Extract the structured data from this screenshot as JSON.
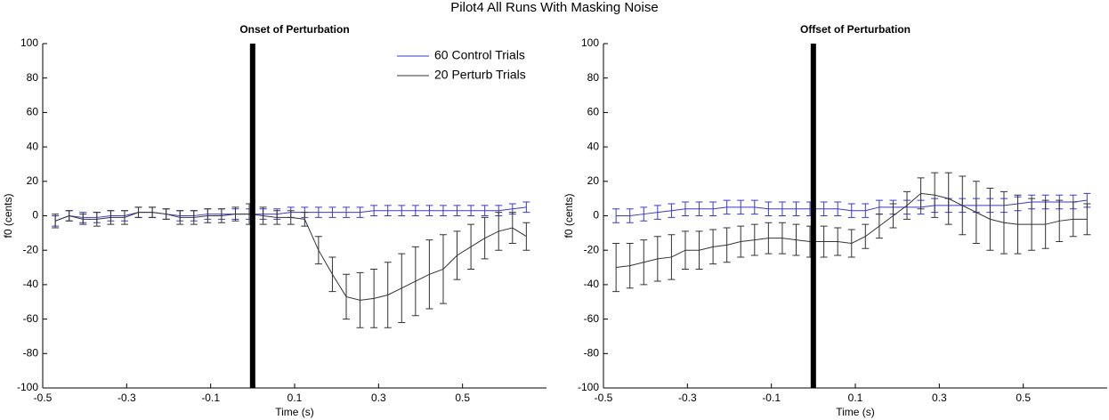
{
  "title": "Pilot4 All Runs With Masking Noise",
  "chart_data": [
    {
      "type": "line",
      "title": "Onset of Perturbation",
      "x_label": "Time (s)",
      "y_label": "f0 (cents)",
      "xlim": [
        -0.5,
        0.7
      ],
      "ylim": [
        -100,
        100
      ],
      "xticks": [
        -0.5,
        -0.3,
        -0.1,
        0.1,
        0.3,
        0.5
      ],
      "yticks": [
        -100,
        -80,
        -60,
        -40,
        -20,
        0,
        20,
        40,
        60,
        80,
        100
      ],
      "vline": 0,
      "legend": "upper right",
      "x": [
        -0.47,
        -0.437,
        -0.404,
        -0.371,
        -0.338,
        -0.305,
        -0.272,
        -0.239,
        -0.206,
        -0.173,
        -0.14,
        -0.107,
        -0.074,
        -0.041,
        -0.008,
        0.025,
        0.058,
        0.091,
        0.124,
        0.157,
        0.19,
        0.223,
        0.256,
        0.289,
        0.322,
        0.355,
        0.388,
        0.421,
        0.454,
        0.487,
        0.52,
        0.553,
        0.586,
        0.619,
        0.652
      ],
      "series": [
        {
          "name": "60 Control Trials",
          "color": "#3a3acc",
          "values": [
            -3,
            0,
            -1,
            -1,
            0,
            0,
            2,
            2,
            1,
            0,
            0,
            1,
            1,
            1,
            1,
            1,
            1,
            2,
            2,
            2,
            2,
            2,
            2,
            3,
            3,
            3,
            3,
            3,
            3,
            3,
            3,
            3,
            3,
            4,
            5
          ],
          "errors": [
            3,
            3,
            3,
            3,
            3,
            3,
            3,
            3,
            3,
            3,
            3,
            3,
            3,
            3,
            3,
            3,
            3,
            3,
            3,
            3,
            3,
            3,
            3,
            3,
            3,
            3,
            3,
            3,
            3,
            3,
            3,
            3,
            3,
            3,
            3
          ]
        },
        {
          "name": "20 Perturb Trials",
          "color": "#333333",
          "values": [
            -3,
            0,
            -2,
            -2,
            -1,
            -1,
            2,
            2,
            1,
            -1,
            -1,
            0,
            0,
            1,
            1,
            0,
            -1,
            -1,
            -2,
            -20,
            -34,
            -47,
            -49,
            -48,
            -46,
            -42,
            -38,
            -34,
            -31,
            -23,
            -18,
            -13,
            -9,
            -7,
            -12
          ],
          "errors": [
            4,
            3,
            3,
            4,
            4,
            4,
            3,
            3,
            3,
            4,
            4,
            4,
            4,
            4,
            6,
            5,
            4,
            4,
            4,
            8,
            10,
            13,
            16,
            17,
            19,
            20,
            20,
            20,
            20,
            14,
            13,
            12,
            11,
            9,
            8
          ]
        }
      ]
    },
    {
      "type": "line",
      "title": "Offset of Perturbation",
      "x_label": "Time (s)",
      "y_label": "f0 (cents)",
      "xlim": [
        -0.5,
        0.7
      ],
      "ylim": [
        -100,
        100
      ],
      "xticks": [
        -0.5,
        -0.3,
        -0.1,
        0.1,
        0.3,
        0.5
      ],
      "yticks": [
        -100,
        -80,
        -60,
        -40,
        -20,
        0,
        20,
        40,
        60,
        80,
        100
      ],
      "vline": 0,
      "x": [
        -0.47,
        -0.437,
        -0.404,
        -0.371,
        -0.338,
        -0.305,
        -0.272,
        -0.239,
        -0.206,
        -0.173,
        -0.14,
        -0.107,
        -0.074,
        -0.041,
        -0.008,
        0.025,
        0.058,
        0.091,
        0.124,
        0.157,
        0.19,
        0.223,
        0.256,
        0.289,
        0.322,
        0.355,
        0.388,
        0.421,
        0.454,
        0.487,
        0.52,
        0.553,
        0.586,
        0.619,
        0.652
      ],
      "series": [
        {
          "name": "60 Control Trials",
          "color": "#3a3acc",
          "values": [
            0,
            0,
            1,
            2,
            3,
            4,
            4,
            4,
            5,
            5,
            5,
            4,
            4,
            4,
            4,
            4,
            4,
            3,
            3,
            5,
            5,
            5,
            5,
            6,
            6,
            6,
            6,
            6,
            6,
            7,
            8,
            8,
            8,
            8,
            9
          ],
          "errors": [
            4,
            4,
            4,
            4,
            4,
            4,
            4,
            4,
            4,
            4,
            4,
            4,
            4,
            4,
            4,
            4,
            4,
            4,
            4,
            4,
            4,
            4,
            4,
            4,
            4,
            4,
            4,
            4,
            4,
            4,
            4,
            4,
            4,
            4,
            4
          ]
        },
        {
          "name": "20 Perturb Trials",
          "color": "#333333",
          "values": [
            -30,
            -29,
            -27,
            -25,
            -24,
            -20,
            -20,
            -18,
            -17,
            -15,
            -14,
            -13,
            -13,
            -14,
            -15,
            -15,
            -15,
            -16,
            -12,
            -6,
            0,
            6,
            13,
            12,
            10,
            6,
            2,
            -2,
            -4,
            -5,
            -5,
            -5,
            -3,
            -2,
            -2
          ],
          "errors": [
            14,
            13,
            13,
            13,
            13,
            11,
            11,
            10,
            10,
            9,
            9,
            9,
            9,
            9,
            9,
            9,
            8,
            8,
            7,
            7,
            7,
            8,
            9,
            13,
            15,
            17,
            18,
            18,
            18,
            17,
            15,
            14,
            12,
            10,
            9
          ]
        }
      ]
    }
  ]
}
